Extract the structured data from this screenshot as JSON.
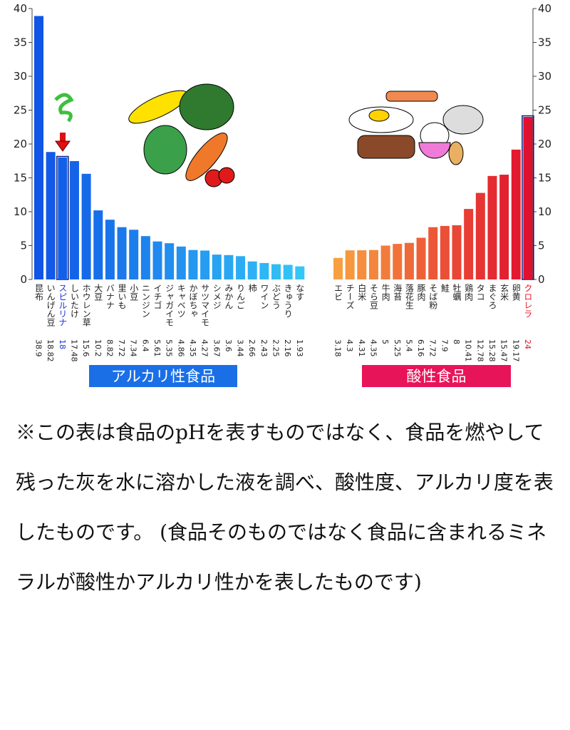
{
  "chart_data": {
    "type": "bar",
    "ylim": [
      0,
      40
    ],
    "yticks": [
      0,
      5,
      10,
      15,
      20,
      25,
      30,
      35,
      40
    ],
    "series": [
      {
        "name": "アルカリ性食品",
        "color": "#1a6fe6",
        "color_from": "#0f55e6",
        "color_to": "#34c6f7",
        "highlight_index": 2,
        "highlight_color": "#1a30e0",
        "categories": [
          "昆布",
          "いんげん豆",
          "スピルリナ",
          "しいたけ",
          "ホウレン草",
          "大豆",
          "バナナ",
          "里いも",
          "小豆",
          "ニンジン",
          "イチゴ",
          "ジャガイモ",
          "キャベツ",
          "かぼちゃ",
          "サツマイモ",
          "シメジ",
          "みかん",
          "りんご",
          "柿",
          "ワイン",
          "ぶどう",
          "きゅうり",
          "なす"
        ],
        "values": [
          38.9,
          18.82,
          18,
          17.48,
          15.6,
          10.2,
          8.82,
          7.72,
          7.34,
          6.4,
          5.61,
          5.35,
          4.86,
          4.35,
          4.27,
          3.67,
          3.6,
          3.44,
          2.66,
          2.43,
          2.25,
          2.16,
          1.93
        ]
      },
      {
        "name": "酸性食品",
        "color": "#e8145a",
        "color_from": "#f8a040",
        "color_to": "#e0102e",
        "highlight_index": 16,
        "highlight_color": "#e81020",
        "categories": [
          "エビ",
          "チーズ",
          "白米",
          "そら豆",
          "牛肉",
          "海苔",
          "落花生",
          "豚肉",
          "そば粉",
          "鮭",
          "牡蠣",
          "鶏肉",
          "タコ",
          "まぐろ",
          "玄米",
          "卵黄",
          "クロレラ"
        ],
        "values": [
          3.18,
          4.3,
          4.31,
          4.35,
          5,
          5.25,
          5.4,
          6.16,
          7.72,
          7.9,
          8,
          10.41,
          12.78,
          15.28,
          15.47,
          19.17,
          24
        ]
      }
    ],
    "note": "※この表は食品のpHを表すものではなく、食品を燃やして残った灰を水に溶かした液を調べ、酸性度、アルカリ度を表したものです。 (食品そのものではなく食品に含まれるミネラルが酸性かアルカリ性かを表したものです)"
  }
}
